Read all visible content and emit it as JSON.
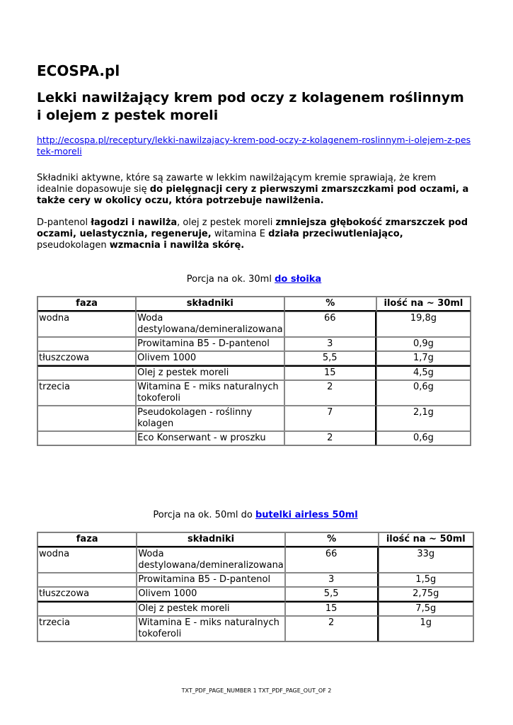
{
  "site_title": "ECOSPA.pl",
  "heading": "Lekki nawilżający krem pod oczy z kolagenem roślinnym i olejem z pestek moreli",
  "url": "http://ecospa.pl/receptury/lekki-nawilzajacy-krem-pod-oczy-z-kolagenem-roslinnym-i-olejem-z-pestek-moreli",
  "para1": [
    "Składniki aktywne, które są zawarte w lekkim nawilżającym kremie sprawiają, że krem idealnie dopasowuje się ",
    "do pielęgnacji cery z pierwszymi zmarszczkami pod oczami, a także cery w okolicy oczu, która potrzebuje nawilżenia."
  ],
  "para2": [
    "D-pantenol ",
    "łagodzi i nawilża",
    ", olej z pestek moreli ",
    "zmniejsza głębokość zmarszczek pod oczami, uelastycznia, regeneruje,",
    " witamina E ",
    "działa przeciwutleniająco,",
    " pseudokolagen ",
    "wzmacnia i nawilża skórę."
  ],
  "table1": {
    "caption": "Porcja na ok. 30ml ",
    "link": "do słoika",
    "headers": [
      "faza",
      "składniki",
      "%",
      "ilość na ~ 30ml"
    ],
    "rows": [
      [
        "wodna",
        "Woda destylowana/demineralizowana",
        "66",
        "19,8g"
      ],
      [
        "",
        "Prowitamina B5 - D-pantenol",
        "3",
        "0,9g"
      ],
      [
        "tłuszczowa",
        "Olivem 1000",
        "5,5",
        "1,7g"
      ],
      [
        "",
        "Olej z pestek moreli",
        "15",
        "4,5g"
      ],
      [
        "trzecia",
        "Witamina E - miks naturalnych tokoferoli",
        "2",
        "0,6g"
      ],
      [
        "",
        "Pseudokolagen - roślinny kolagen",
        "7",
        "2,1g"
      ],
      [
        "",
        "Eco Konserwant - w proszku",
        "2",
        "0,6g"
      ]
    ]
  },
  "table2": {
    "caption": "Porcja na ok. 50ml do ",
    "link": "butelki airless 50ml",
    "headers": [
      "faza",
      "składniki",
      "%",
      "ilość na ~ 50ml"
    ],
    "rows": [
      [
        "wodna",
        "Woda destylowana/demineralizowana",
        "66",
        "33g"
      ],
      [
        "",
        "Prowitamina B5 - D-pantenol",
        "3",
        "1,5g"
      ],
      [
        "tłuszczowa",
        "Olivem 1000",
        "5,5",
        "2,75g"
      ],
      [
        "",
        "Olej z pestek moreli",
        "15",
        "7,5g"
      ],
      [
        "trzecia",
        "Witamina E - miks naturalnych tokoferoli",
        "2",
        "1g"
      ]
    ]
  },
  "footer": "TXT_PDF_PAGE_NUMBER 1 TXT_PDF_PAGE_OUT_OF 2"
}
